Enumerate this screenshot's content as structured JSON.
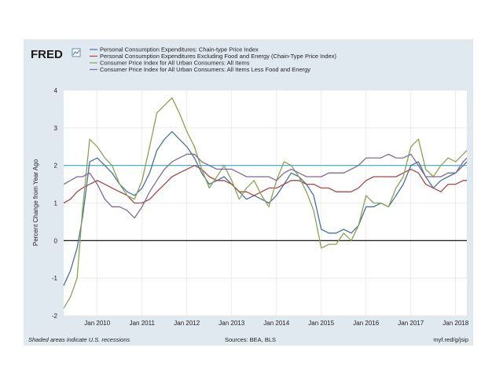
{
  "logo": {
    "text": "FRED",
    "icon": "fred-chart-icon"
  },
  "footer": {
    "note": "Shaded areas indicate U.S. recessions",
    "sources": "Sources: BEA, BLS",
    "link": "myf.red/g/jsip"
  },
  "colors": {
    "background": "#e1e9f0",
    "plot_background": "#ffffff",
    "reference_line": "#3aa9d0"
  },
  "chart_data": {
    "type": "line",
    "xlabel": "",
    "ylabel": "Percent Change from Year Ago",
    "ylim": [
      -2,
      4
    ],
    "yticks": [
      -2,
      -1,
      0,
      1,
      2,
      3,
      4
    ],
    "xlim": [
      2009.25,
      2018.25
    ],
    "xticks": [
      {
        "x": 2010,
        "label": "Jan 2010"
      },
      {
        "x": 2011,
        "label": "Jan 2011"
      },
      {
        "x": 2012,
        "label": "Jan 2012"
      },
      {
        "x": 2013,
        "label": "Jan 2013"
      },
      {
        "x": 2014,
        "label": "Jan 2014"
      },
      {
        "x": 2015,
        "label": "Jan 2015"
      },
      {
        "x": 2016,
        "label": "Jan 2016"
      },
      {
        "x": 2017,
        "label": "Jan 2017"
      },
      {
        "x": 2018,
        "label": "Jan 2018"
      }
    ],
    "grid": true,
    "legend_position": "top",
    "reference_lines": [
      {
        "y": 0,
        "color": "#000000"
      },
      {
        "y": 2,
        "color": "#3aa9d0"
      }
    ],
    "series": [
      {
        "name": "Personal Consumption Expenditures: Chain-type Price Index",
        "color": "#4572a7",
        "points": [
          [
            2009.25,
            -1.2
          ],
          [
            2009.4,
            -0.8
          ],
          [
            2009.55,
            -0.2
          ],
          [
            2009.67,
            0.6
          ],
          [
            2009.83,
            2.1
          ],
          [
            2010.0,
            2.2
          ],
          [
            2010.17,
            2.0
          ],
          [
            2010.33,
            1.8
          ],
          [
            2010.5,
            1.5
          ],
          [
            2010.67,
            1.3
          ],
          [
            2010.83,
            1.2
          ],
          [
            2011.0,
            1.4
          ],
          [
            2011.17,
            1.8
          ],
          [
            2011.33,
            2.4
          ],
          [
            2011.5,
            2.7
          ],
          [
            2011.67,
            2.9
          ],
          [
            2011.83,
            2.7
          ],
          [
            2012.0,
            2.5
          ],
          [
            2012.17,
            2.2
          ],
          [
            2012.33,
            1.8
          ],
          [
            2012.5,
            1.5
          ],
          [
            2012.67,
            1.6
          ],
          [
            2012.83,
            1.7
          ],
          [
            2013.0,
            1.5
          ],
          [
            2013.17,
            1.3
          ],
          [
            2013.33,
            1.1
          ],
          [
            2013.5,
            1.2
          ],
          [
            2013.67,
            1.1
          ],
          [
            2013.83,
            1.0
          ],
          [
            2014.0,
            1.2
          ],
          [
            2014.17,
            1.5
          ],
          [
            2014.33,
            1.8
          ],
          [
            2014.5,
            1.7
          ],
          [
            2014.67,
            1.5
          ],
          [
            2014.83,
            1.2
          ],
          [
            2015.0,
            0.3
          ],
          [
            2015.17,
            0.2
          ],
          [
            2015.33,
            0.2
          ],
          [
            2015.5,
            0.3
          ],
          [
            2015.67,
            0.2
          ],
          [
            2015.83,
            0.4
          ],
          [
            2016.0,
            0.9
          ],
          [
            2016.17,
            0.9
          ],
          [
            2016.33,
            1.0
          ],
          [
            2016.5,
            0.9
          ],
          [
            2016.67,
            1.2
          ],
          [
            2016.83,
            1.5
          ],
          [
            2017.0,
            2.0
          ],
          [
            2017.17,
            2.1
          ],
          [
            2017.33,
            1.7
          ],
          [
            2017.5,
            1.4
          ],
          [
            2017.67,
            1.6
          ],
          [
            2017.83,
            1.7
          ],
          [
            2018.0,
            1.8
          ],
          [
            2018.17,
            2.0
          ],
          [
            2018.25,
            2.1
          ]
        ]
      },
      {
        "name": "Personal Consumption Expenditures Excluding Food and Energy (Chain-Type Price Index)",
        "color": "#aa4643",
        "points": [
          [
            2009.25,
            1.0
          ],
          [
            2009.4,
            1.1
          ],
          [
            2009.55,
            1.3
          ],
          [
            2009.67,
            1.4
          ],
          [
            2009.83,
            1.5
          ],
          [
            2010.0,
            1.6
          ],
          [
            2010.17,
            1.5
          ],
          [
            2010.33,
            1.4
          ],
          [
            2010.5,
            1.3
          ],
          [
            2010.67,
            1.2
          ],
          [
            2010.83,
            1.0
          ],
          [
            2011.0,
            1.0
          ],
          [
            2011.17,
            1.1
          ],
          [
            2011.33,
            1.3
          ],
          [
            2011.5,
            1.5
          ],
          [
            2011.67,
            1.7
          ],
          [
            2011.83,
            1.8
          ],
          [
            2012.0,
            1.9
          ],
          [
            2012.17,
            2.0
          ],
          [
            2012.33,
            1.9
          ],
          [
            2012.5,
            1.7
          ],
          [
            2012.67,
            1.6
          ],
          [
            2012.83,
            1.6
          ],
          [
            2013.0,
            1.5
          ],
          [
            2013.17,
            1.3
          ],
          [
            2013.33,
            1.3
          ],
          [
            2013.5,
            1.2
          ],
          [
            2013.67,
            1.3
          ],
          [
            2013.83,
            1.4
          ],
          [
            2014.0,
            1.4
          ],
          [
            2014.17,
            1.5
          ],
          [
            2014.33,
            1.6
          ],
          [
            2014.5,
            1.6
          ],
          [
            2014.67,
            1.5
          ],
          [
            2014.83,
            1.5
          ],
          [
            2015.0,
            1.4
          ],
          [
            2015.17,
            1.4
          ],
          [
            2015.33,
            1.3
          ],
          [
            2015.5,
            1.3
          ],
          [
            2015.67,
            1.3
          ],
          [
            2015.83,
            1.4
          ],
          [
            2016.0,
            1.6
          ],
          [
            2016.17,
            1.7
          ],
          [
            2016.33,
            1.7
          ],
          [
            2016.5,
            1.7
          ],
          [
            2016.67,
            1.7
          ],
          [
            2016.83,
            1.8
          ],
          [
            2017.0,
            1.9
          ],
          [
            2017.17,
            1.8
          ],
          [
            2017.33,
            1.5
          ],
          [
            2017.5,
            1.4
          ],
          [
            2017.67,
            1.3
          ],
          [
            2017.83,
            1.5
          ],
          [
            2018.0,
            1.5
          ],
          [
            2018.17,
            1.6
          ],
          [
            2018.25,
            1.6
          ]
        ]
      },
      {
        "name": "Consumer Price Index for All Urban Consumers: All Items",
        "color": "#89a54e",
        "points": [
          [
            2009.25,
            -1.8
          ],
          [
            2009.4,
            -1.5
          ],
          [
            2009.55,
            -1.0
          ],
          [
            2009.67,
            0.8
          ],
          [
            2009.83,
            2.7
          ],
          [
            2010.0,
            2.5
          ],
          [
            2010.17,
            2.2
          ],
          [
            2010.33,
            2.0
          ],
          [
            2010.5,
            1.5
          ],
          [
            2010.67,
            1.2
          ],
          [
            2010.83,
            1.1
          ],
          [
            2011.0,
            1.6
          ],
          [
            2011.17,
            2.5
          ],
          [
            2011.33,
            3.4
          ],
          [
            2011.5,
            3.6
          ],
          [
            2011.67,
            3.8
          ],
          [
            2011.83,
            3.4
          ],
          [
            2012.0,
            2.9
          ],
          [
            2012.17,
            2.5
          ],
          [
            2012.33,
            1.9
          ],
          [
            2012.5,
            1.4
          ],
          [
            2012.67,
            1.7
          ],
          [
            2012.83,
            2.0
          ],
          [
            2013.0,
            1.6
          ],
          [
            2013.17,
            1.1
          ],
          [
            2013.33,
            1.4
          ],
          [
            2013.5,
            1.6
          ],
          [
            2013.67,
            1.2
          ],
          [
            2013.83,
            0.9
          ],
          [
            2014.0,
            1.6
          ],
          [
            2014.17,
            2.1
          ],
          [
            2014.33,
            2.0
          ],
          [
            2014.5,
            1.7
          ],
          [
            2014.67,
            1.3
          ],
          [
            2014.83,
            0.8
          ],
          [
            2015.0,
            -0.2
          ],
          [
            2015.17,
            -0.1
          ],
          [
            2015.33,
            -0.1
          ],
          [
            2015.5,
            0.2
          ],
          [
            2015.67,
            0.0
          ],
          [
            2015.83,
            0.4
          ],
          [
            2016.0,
            1.2
          ],
          [
            2016.17,
            1.0
          ],
          [
            2016.33,
            1.0
          ],
          [
            2016.5,
            0.9
          ],
          [
            2016.67,
            1.4
          ],
          [
            2016.83,
            1.7
          ],
          [
            2017.0,
            2.5
          ],
          [
            2017.17,
            2.7
          ],
          [
            2017.33,
            1.9
          ],
          [
            2017.5,
            1.7
          ],
          [
            2017.67,
            2.0
          ],
          [
            2017.83,
            2.2
          ],
          [
            2018.0,
            2.1
          ],
          [
            2018.17,
            2.3
          ],
          [
            2018.25,
            2.4
          ]
        ]
      },
      {
        "name": "Consumer Price Index for All Urban Consumers: All Items Less Food and Energy",
        "color": "#80699b",
        "points": [
          [
            2009.25,
            1.5
          ],
          [
            2009.4,
            1.6
          ],
          [
            2009.55,
            1.7
          ],
          [
            2009.67,
            1.7
          ],
          [
            2009.83,
            1.8
          ],
          [
            2010.0,
            1.5
          ],
          [
            2010.17,
            1.1
          ],
          [
            2010.33,
            0.9
          ],
          [
            2010.5,
            0.9
          ],
          [
            2010.67,
            0.8
          ],
          [
            2010.83,
            0.6
          ],
          [
            2011.0,
            0.9
          ],
          [
            2011.17,
            1.3
          ],
          [
            2011.33,
            1.6
          ],
          [
            2011.5,
            1.9
          ],
          [
            2011.67,
            2.1
          ],
          [
            2011.83,
            2.2
          ],
          [
            2012.0,
            2.3
          ],
          [
            2012.17,
            2.3
          ],
          [
            2012.33,
            2.1
          ],
          [
            2012.5,
            2.0
          ],
          [
            2012.67,
            1.9
          ],
          [
            2012.83,
            1.9
          ],
          [
            2013.0,
            1.9
          ],
          [
            2013.17,
            1.8
          ],
          [
            2013.33,
            1.7
          ],
          [
            2013.5,
            1.7
          ],
          [
            2013.67,
            1.7
          ],
          [
            2013.83,
            1.7
          ],
          [
            2014.0,
            1.6
          ],
          [
            2014.17,
            1.8
          ],
          [
            2014.33,
            1.9
          ],
          [
            2014.5,
            1.8
          ],
          [
            2014.67,
            1.7
          ],
          [
            2014.83,
            1.7
          ],
          [
            2015.0,
            1.7
          ],
          [
            2015.17,
            1.8
          ],
          [
            2015.33,
            1.8
          ],
          [
            2015.5,
            1.8
          ],
          [
            2015.67,
            1.9
          ],
          [
            2015.83,
            2.0
          ],
          [
            2016.0,
            2.2
          ],
          [
            2016.17,
            2.2
          ],
          [
            2016.33,
            2.2
          ],
          [
            2016.5,
            2.3
          ],
          [
            2016.67,
            2.2
          ],
          [
            2016.83,
            2.2
          ],
          [
            2017.0,
            2.3
          ],
          [
            2017.17,
            2.0
          ],
          [
            2017.33,
            1.7
          ],
          [
            2017.5,
            1.7
          ],
          [
            2017.67,
            1.7
          ],
          [
            2017.83,
            1.8
          ],
          [
            2018.0,
            1.8
          ],
          [
            2018.17,
            2.1
          ],
          [
            2018.25,
            2.2
          ]
        ]
      }
    ]
  }
}
